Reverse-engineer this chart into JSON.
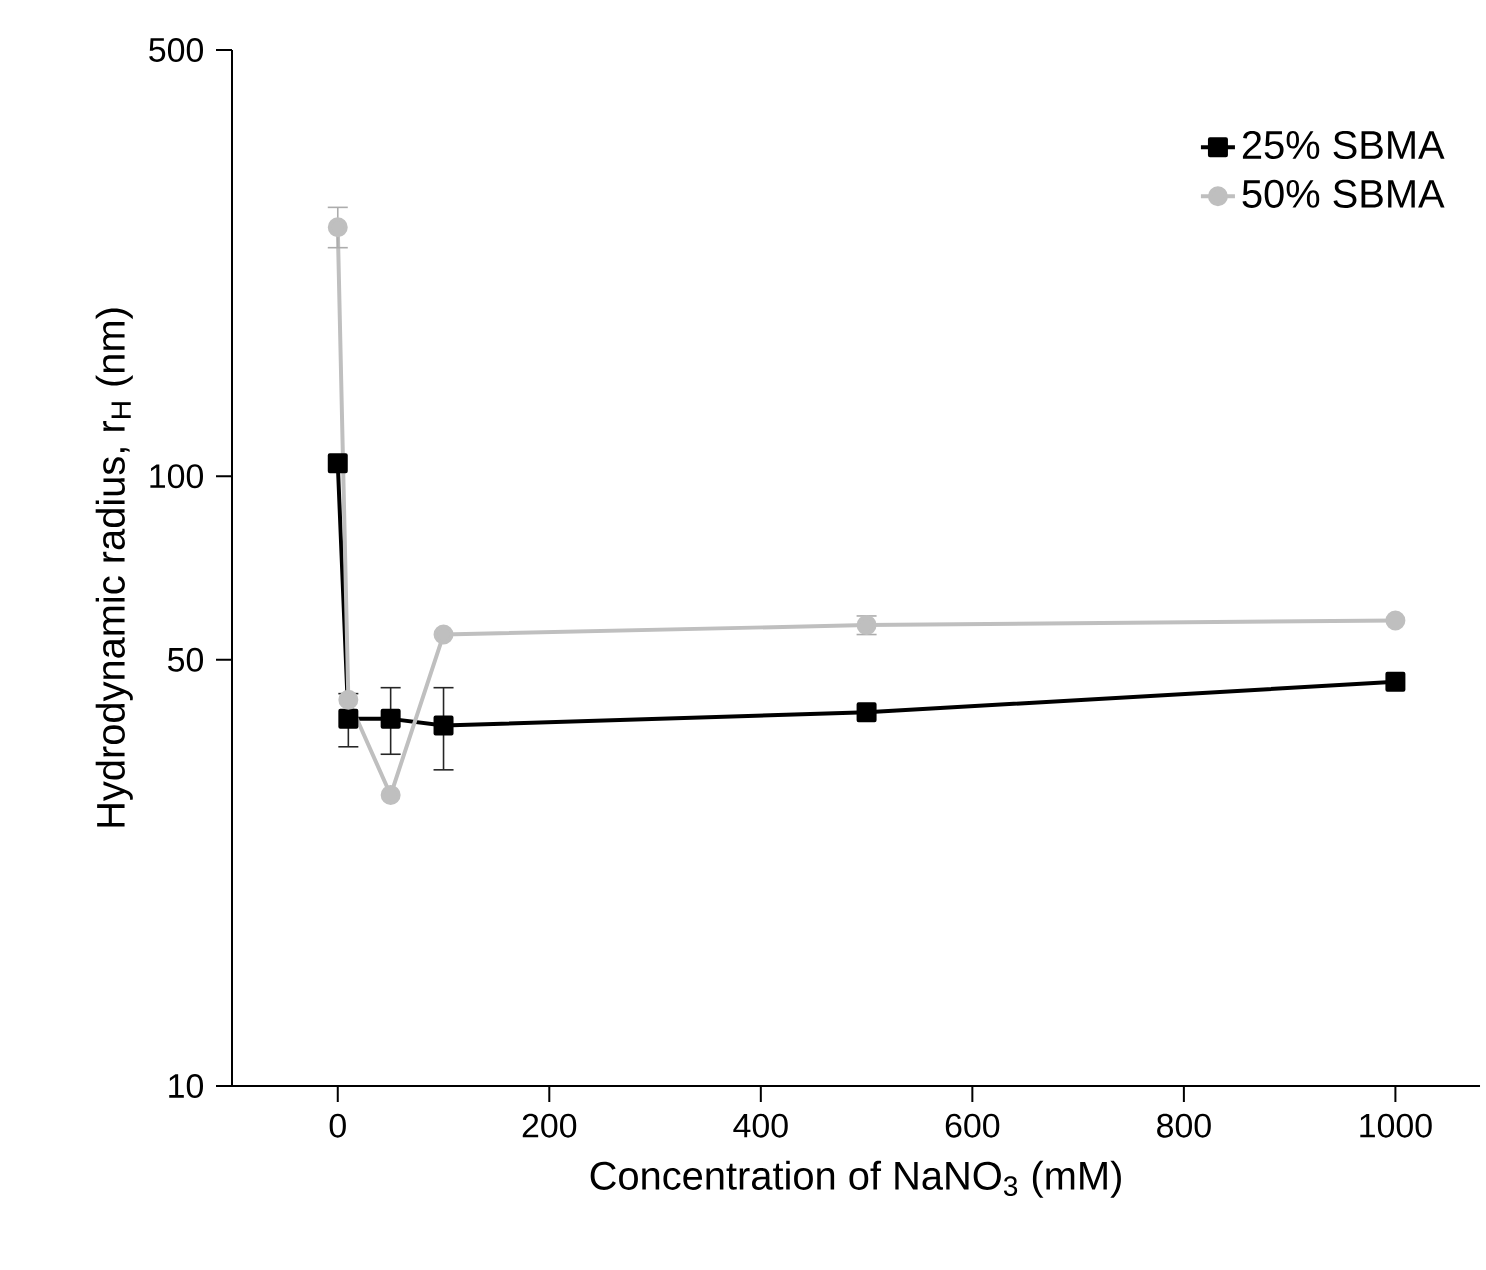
{
  "chart_data": {
    "type": "line",
    "xlabel": "Concentration of NaNO$_{3}$ (mM)",
    "ylabel": "Hydrodynamic radius, r$_{H}$ (nm)",
    "x": [
      0,
      10,
      50,
      100,
      500,
      1000
    ],
    "series": [
      {
        "name": "25% SBMA",
        "color": "#000000",
        "marker": "square",
        "values": [
          105,
          40,
          40,
          39,
          41,
          46
        ],
        "errors": [
          null,
          [
            36,
            44
          ],
          [
            35,
            45
          ],
          [
            33,
            45
          ],
          null,
          null
        ]
      },
      {
        "name": "50% SBMA",
        "color": "#bfbfbf",
        "marker": "circle",
        "values": [
          256,
          43,
          30,
          55,
          57,
          58
        ],
        "errors": [
          [
            237,
            276
          ],
          null,
          null,
          null,
          [
            55,
            59
          ],
          null
        ]
      }
    ],
    "xlim": [
      -100,
      1080
    ],
    "ylim": [
      10,
      500
    ],
    "xticks": [
      0,
      200,
      400,
      600,
      800,
      1000
    ],
    "yticks": [
      10,
      50,
      100,
      500
    ],
    "log": "y",
    "legend": "top right",
    "line_style": "solid",
    "grid": false
  }
}
